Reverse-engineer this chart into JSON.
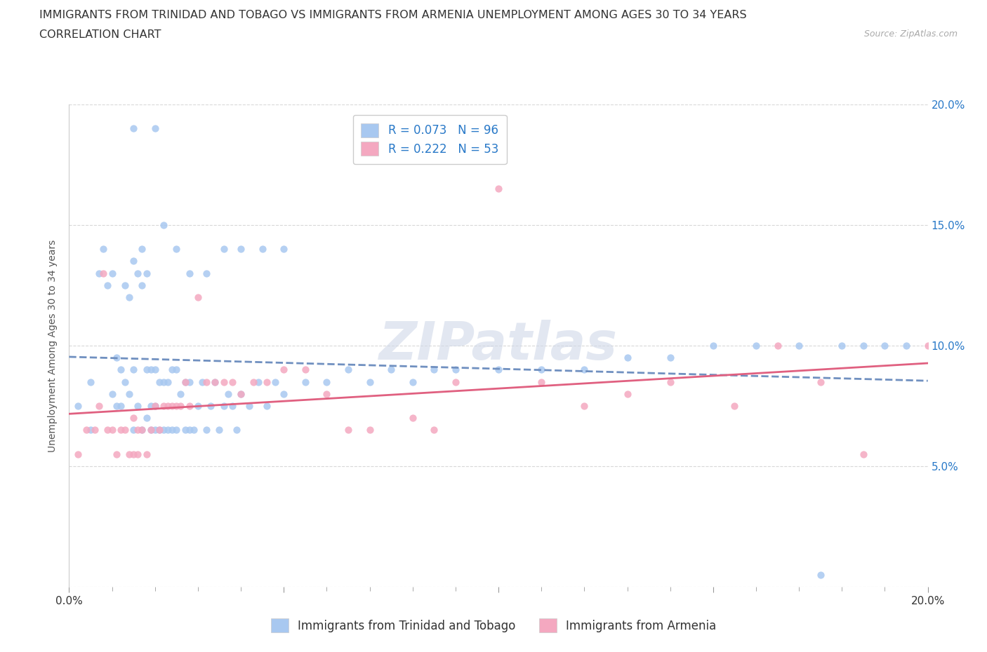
{
  "title_line1": "IMMIGRANTS FROM TRINIDAD AND TOBAGO VS IMMIGRANTS FROM ARMENIA UNEMPLOYMENT AMONG AGES 30 TO 34 YEARS",
  "title_line2": "CORRELATION CHART",
  "source_text": "Source: ZipAtlas.com",
  "ylabel": "Unemployment Among Ages 30 to 34 years",
  "xlim": [
    0.0,
    0.2
  ],
  "ylim": [
    0.0,
    0.2
  ],
  "xtick_vals": [
    0.0,
    0.05,
    0.1,
    0.15,
    0.2
  ],
  "xtick_labels": [
    "0.0%",
    "",
    "",
    "",
    "20.0%"
  ],
  "ytick_vals": [
    0.0,
    0.05,
    0.1,
    0.15,
    0.2
  ],
  "ytick_right_labels": [
    "",
    "5.0%",
    "10.0%",
    "15.0%",
    "20.0%"
  ],
  "color_tt": "#a8c8f0",
  "color_arm": "#f4a8c0",
  "R_tt": 0.073,
  "N_tt": 96,
  "R_arm": 0.222,
  "N_arm": 53,
  "watermark": "ZIPatlas",
  "legend_label_tt": "Immigrants from Trinidad and Tobago",
  "legend_label_arm": "Immigrants from Armenia",
  "background_color": "#ffffff",
  "grid_color": "#d8d8d8",
  "title_fontsize": 11.5,
  "axis_label_fontsize": 10,
  "tick_fontsize": 11,
  "legend_fontsize": 12,
  "blue_color": "#2979c8",
  "tt_x": [
    0.002,
    0.005,
    0.005,
    0.007,
    0.008,
    0.009,
    0.01,
    0.01,
    0.011,
    0.011,
    0.012,
    0.012,
    0.013,
    0.013,
    0.014,
    0.014,
    0.015,
    0.015,
    0.015,
    0.016,
    0.016,
    0.017,
    0.017,
    0.017,
    0.018,
    0.018,
    0.018,
    0.019,
    0.019,
    0.019,
    0.02,
    0.02,
    0.02,
    0.021,
    0.021,
    0.022,
    0.022,
    0.023,
    0.023,
    0.024,
    0.024,
    0.025,
    0.025,
    0.026,
    0.027,
    0.027,
    0.028,
    0.028,
    0.029,
    0.03,
    0.031,
    0.032,
    0.033,
    0.034,
    0.035,
    0.036,
    0.037,
    0.038,
    0.039,
    0.04,
    0.042,
    0.044,
    0.046,
    0.048,
    0.05,
    0.055,
    0.06,
    0.065,
    0.07,
    0.075,
    0.08,
    0.085,
    0.09,
    0.1,
    0.11,
    0.12,
    0.13,
    0.14,
    0.15,
    0.16,
    0.17,
    0.175,
    0.18,
    0.185,
    0.19,
    0.195,
    0.015,
    0.02,
    0.022,
    0.025,
    0.028,
    0.032,
    0.036,
    0.04,
    0.045,
    0.05
  ],
  "tt_y": [
    0.075,
    0.085,
    0.065,
    0.13,
    0.14,
    0.125,
    0.13,
    0.08,
    0.095,
    0.075,
    0.09,
    0.075,
    0.125,
    0.085,
    0.12,
    0.08,
    0.135,
    0.09,
    0.065,
    0.13,
    0.075,
    0.14,
    0.125,
    0.065,
    0.13,
    0.09,
    0.07,
    0.09,
    0.075,
    0.065,
    0.09,
    0.075,
    0.065,
    0.085,
    0.065,
    0.085,
    0.065,
    0.085,
    0.065,
    0.09,
    0.065,
    0.09,
    0.065,
    0.08,
    0.065,
    0.085,
    0.065,
    0.085,
    0.065,
    0.075,
    0.085,
    0.065,
    0.075,
    0.085,
    0.065,
    0.075,
    0.08,
    0.075,
    0.065,
    0.08,
    0.075,
    0.085,
    0.075,
    0.085,
    0.08,
    0.085,
    0.085,
    0.09,
    0.085,
    0.09,
    0.085,
    0.09,
    0.09,
    0.09,
    0.09,
    0.09,
    0.095,
    0.095,
    0.1,
    0.1,
    0.1,
    0.005,
    0.1,
    0.1,
    0.1,
    0.1,
    0.19,
    0.19,
    0.15,
    0.14,
    0.13,
    0.13,
    0.14,
    0.14,
    0.14,
    0.14
  ],
  "arm_x": [
    0.002,
    0.004,
    0.006,
    0.007,
    0.008,
    0.009,
    0.01,
    0.011,
    0.012,
    0.013,
    0.014,
    0.015,
    0.015,
    0.016,
    0.016,
    0.017,
    0.018,
    0.019,
    0.02,
    0.021,
    0.022,
    0.023,
    0.024,
    0.025,
    0.026,
    0.027,
    0.028,
    0.03,
    0.032,
    0.034,
    0.036,
    0.038,
    0.04,
    0.043,
    0.046,
    0.05,
    0.055,
    0.06,
    0.065,
    0.07,
    0.08,
    0.085,
    0.09,
    0.1,
    0.11,
    0.12,
    0.13,
    0.14,
    0.155,
    0.165,
    0.175,
    0.185,
    0.2
  ],
  "arm_y": [
    0.055,
    0.065,
    0.065,
    0.075,
    0.13,
    0.065,
    0.065,
    0.055,
    0.065,
    0.065,
    0.055,
    0.07,
    0.055,
    0.065,
    0.055,
    0.065,
    0.055,
    0.065,
    0.075,
    0.065,
    0.075,
    0.075,
    0.075,
    0.075,
    0.075,
    0.085,
    0.075,
    0.12,
    0.085,
    0.085,
    0.085,
    0.085,
    0.08,
    0.085,
    0.085,
    0.09,
    0.09,
    0.08,
    0.065,
    0.065,
    0.07,
    0.065,
    0.085,
    0.165,
    0.085,
    0.075,
    0.08,
    0.085,
    0.075,
    0.1,
    0.085,
    0.055,
    0.1
  ]
}
